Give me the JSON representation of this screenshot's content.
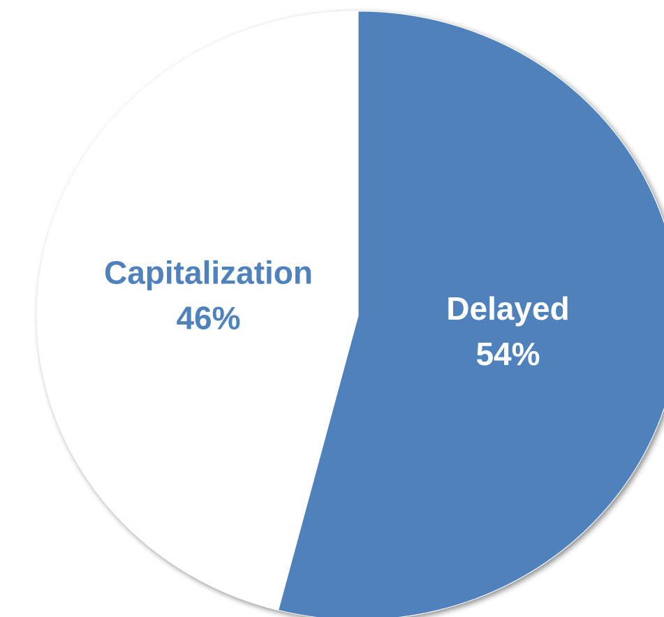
{
  "chart_data": {
    "type": "pie",
    "categories": [
      "Delayed",
      "Capitalization"
    ],
    "values": [
      54,
      46
    ],
    "value_labels": [
      "54%",
      "46%"
    ],
    "colors": [
      "#4f81bd",
      "#ffffff"
    ]
  }
}
